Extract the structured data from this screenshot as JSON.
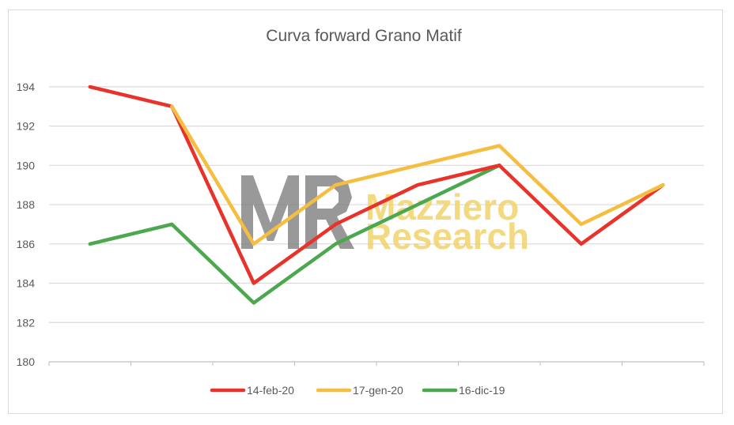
{
  "chart_data": {
    "type": "line",
    "title": "Curva forward Grano Matif",
    "xlabel": "",
    "ylabel": "",
    "ylim": [
      180,
      195
    ],
    "yticks": [
      180,
      182,
      184,
      186,
      188,
      190,
      192,
      194
    ],
    "x": [
      1,
      2,
      3,
      4,
      5,
      6,
      7,
      8
    ],
    "grid": true,
    "legend": "bottom",
    "series": [
      {
        "name": "14-feb-20",
        "color": "#e8322a",
        "values": [
          194,
          193,
          184,
          187,
          189,
          190,
          186,
          189
        ]
      },
      {
        "name": "17-gen-20",
        "color": "#f6be41",
        "values": [
          null,
          193,
          186,
          189,
          190,
          191,
          187,
          189
        ]
      },
      {
        "name": "16-dic-19",
        "color": "#4ca84f",
        "values": [
          186,
          187,
          183,
          186,
          188,
          190,
          null,
          null
        ]
      }
    ]
  },
  "watermark": {
    "line1": "Mazziero",
    "line2": "Research",
    "logo_color": "#7f7f7f",
    "text_color": "#f1d36a"
  }
}
